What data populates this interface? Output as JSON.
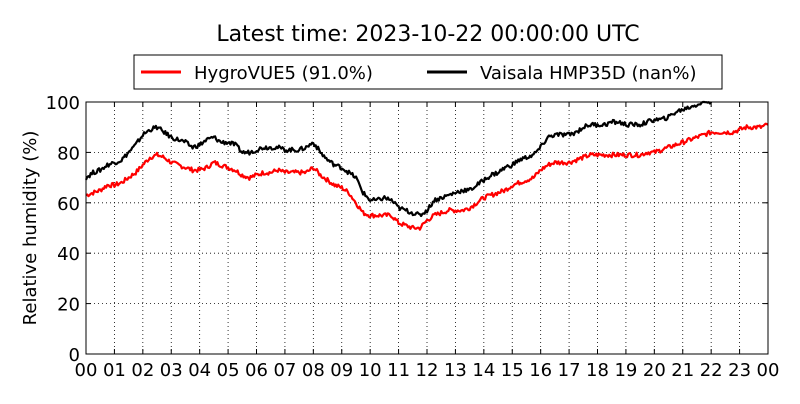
{
  "chart_data": {
    "type": "line",
    "title": "Latest time: 2023-10-22 00:00:00 UTC",
    "xlabel": "",
    "ylabel": "Relative humidity (%)",
    "xlim": [
      0,
      24
    ],
    "ylim": [
      0,
      100
    ],
    "x_ticks": [
      "00",
      "01",
      "02",
      "03",
      "04",
      "05",
      "06",
      "07",
      "08",
      "09",
      "10",
      "11",
      "12",
      "13",
      "14",
      "15",
      "16",
      "17",
      "18",
      "19",
      "20",
      "21",
      "22",
      "23",
      "00"
    ],
    "y_ticks": [
      0,
      20,
      40,
      60,
      80,
      100
    ],
    "grid": true,
    "legend_position": "top",
    "series": [
      {
        "name": "HygroVUE5 (91.0%)",
        "color": "#ff0000",
        "x": [
          0,
          0.25,
          0.5,
          0.75,
          1,
          1.25,
          1.5,
          1.75,
          2,
          2.25,
          2.5,
          2.75,
          3,
          3.25,
          3.5,
          3.75,
          4,
          4.25,
          4.5,
          4.75,
          5,
          5.25,
          5.5,
          5.75,
          6,
          6.25,
          6.5,
          6.75,
          7,
          7.25,
          7.5,
          7.75,
          8,
          8.25,
          8.5,
          8.75,
          9,
          9.25,
          9.5,
          9.75,
          10,
          10.25,
          10.5,
          10.75,
          11,
          11.25,
          11.5,
          11.75,
          12,
          12.25,
          12.5,
          12.75,
          13,
          13.25,
          13.5,
          13.75,
          14,
          14.25,
          14.5,
          14.75,
          15,
          15.25,
          15.5,
          15.75,
          16,
          16.25,
          16.5,
          16.75,
          17,
          17.25,
          17.5,
          17.75,
          18,
          18.25,
          18.5,
          18.75,
          19,
          19.25,
          19.5,
          19.75,
          20,
          20.25,
          20.5,
          20.75,
          21,
          21.25,
          21.5,
          21.75,
          22,
          22.25,
          22.5,
          22.75,
          23,
          23.25,
          23.5,
          23.75,
          24
        ],
        "values": [
          63,
          64,
          65,
          67,
          67,
          68,
          70,
          72,
          75,
          78,
          79,
          78,
          76,
          75,
          74,
          73,
          73,
          74,
          76,
          75,
          74,
          73,
          71,
          70,
          71,
          72,
          72,
          73,
          72,
          72,
          72,
          72,
          74,
          71,
          69,
          67,
          66,
          64,
          60,
          56,
          55,
          55,
          55,
          55,
          52,
          51,
          50,
          50,
          53,
          55,
          56,
          57,
          57,
          57,
          58,
          60,
          62,
          63,
          64,
          65,
          67,
          68,
          69,
          70,
          73,
          75,
          76,
          76,
          76,
          77,
          78,
          79,
          79,
          79,
          79,
          79,
          79,
          79,
          79,
          80,
          80,
          81,
          82,
          83,
          84,
          85,
          86,
          87,
          88,
          88,
          88,
          88,
          89,
          90,
          90,
          90,
          91
        ]
      },
      {
        "name": "Vaisala HMP35D (nan%)",
        "color": "#000000",
        "x": [
          0,
          0.25,
          0.5,
          0.75,
          1,
          1.25,
          1.5,
          1.75,
          2,
          2.25,
          2.5,
          2.75,
          3,
          3.25,
          3.5,
          3.75,
          4,
          4.25,
          4.5,
          4.75,
          5,
          5.25,
          5.5,
          5.75,
          6,
          6.25,
          6.5,
          6.75,
          7,
          7.25,
          7.5,
          7.75,
          8,
          8.25,
          8.5,
          8.75,
          9,
          9.25,
          9.5,
          9.75,
          10,
          10.25,
          10.5,
          10.75,
          11,
          11.25,
          11.5,
          11.75,
          12,
          12.25,
          12.5,
          12.75,
          13,
          13.25,
          13.5,
          13.75,
          14,
          14.25,
          14.5,
          14.75,
          15,
          15.25,
          15.5,
          15.75,
          16,
          16.25,
          16.5,
          16.75,
          17,
          17.25,
          17.5,
          17.75,
          18,
          18.25,
          18.5,
          18.75,
          19,
          19.25,
          19.5,
          19.75,
          20,
          20.25,
          20.5,
          20.75,
          21,
          21.25,
          21.5,
          21.75,
          22
        ],
        "values": [
          70,
          72,
          73,
          75,
          76,
          77,
          80,
          83,
          87,
          89,
          90,
          88,
          86,
          85,
          84,
          82,
          83,
          85,
          86,
          84,
          84,
          83,
          80,
          80,
          81,
          82,
          82,
          82,
          81,
          81,
          81,
          82,
          84,
          80,
          77,
          75,
          74,
          72,
          70,
          64,
          61,
          61,
          62,
          61,
          58,
          57,
          56,
          55,
          57,
          61,
          62,
          63,
          64,
          65,
          65,
          67,
          69,
          71,
          72,
          74,
          75,
          77,
          78,
          79,
          82,
          86,
          87,
          87,
          87,
          88,
          90,
          91,
          91,
          91,
          92,
          92,
          91,
          91,
          91,
          92,
          93,
          93,
          94,
          96,
          97,
          98,
          99,
          100,
          100
        ]
      }
    ]
  }
}
